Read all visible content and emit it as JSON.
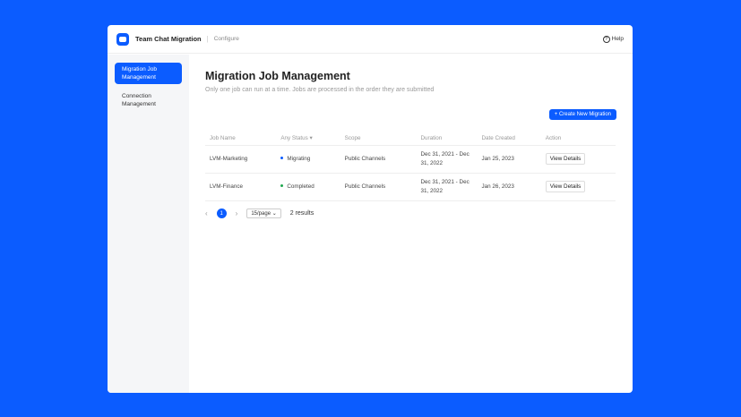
{
  "header": {
    "app_title": "Team Chat Migration",
    "section": "Configure",
    "help": "Help"
  },
  "sidebar": {
    "items": [
      {
        "label": "Migration Job Management",
        "active": true
      },
      {
        "label": "Connection Management",
        "active": false
      }
    ]
  },
  "main": {
    "title": "Migration Job Management",
    "subtitle": "Only one job can run at a time. Jobs are processed in the order they are submitted",
    "create_button": "+ Create New Migration",
    "columns": [
      "Job Name",
      "Any Status ▾",
      "Scope",
      "Duration",
      "Date Created",
      "Action"
    ],
    "rows": [
      {
        "name": "LVM-Marketing",
        "status": "Migrating",
        "status_color": "#0b5cff",
        "scope": "Public Channels",
        "duration": "Dec 31, 2021 - Dec 31, 2022",
        "created": "Jan 25, 2023",
        "action": "View Details"
      },
      {
        "name": "LVM-Finance",
        "status": "Completed",
        "status_color": "#1fa84f",
        "scope": "Public Channels",
        "duration": "Dec 31, 2021 - Dec 31, 2022",
        "created": "Jan 26, 2023",
        "action": "View Details"
      }
    ],
    "pagination": {
      "page": "1",
      "per_page": "15/page",
      "results": "2 results"
    }
  }
}
